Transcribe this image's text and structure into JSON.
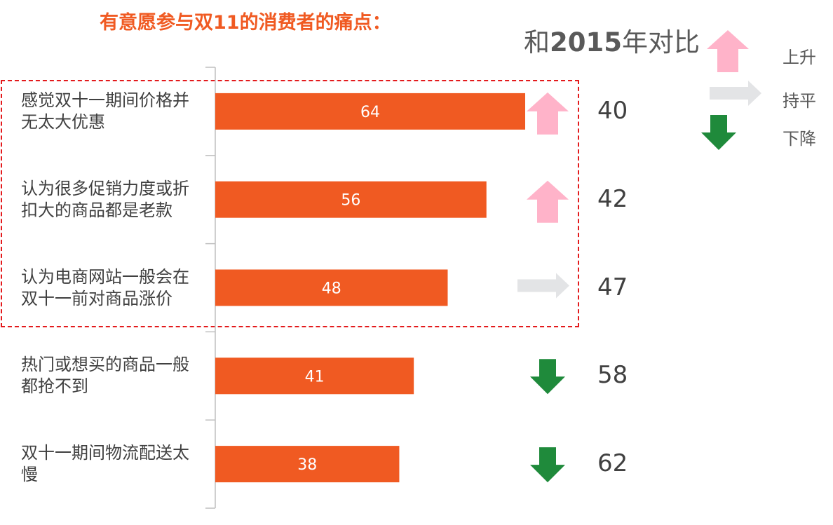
{
  "title": "有意愿参与双11的消费者的痛点：",
  "comparison_title": {
    "prefix": "和",
    "year": "2015",
    "suffix": "年对比"
  },
  "legend": [
    {
      "label": "上升",
      "icon": "arrow-up-icon",
      "color": "#ffb3c9"
    },
    {
      "label": "持平",
      "icon": "arrow-right-icon",
      "color": "#e3e4e6"
    },
    {
      "label": "下降",
      "icon": "arrow-down-icon",
      "color": "#1f8a3b"
    }
  ],
  "colors": {
    "bar": "#f05a22",
    "accent": "#f05a22",
    "highlight_border": "#e31a1c"
  },
  "chart_data": {
    "type": "bar",
    "orientation": "horizontal",
    "categories": [
      "感觉双十一期间价格并无太大优惠",
      "认为很多促销力度或折扣大的商品都是老款",
      "认为电商网站一般会在双十一前对商品涨价",
      "热门或想买的商品一般都抢不到",
      "双十一期间物流配送太慢"
    ],
    "values": [
      64,
      56,
      48,
      41,
      38
    ],
    "xlim": [
      0,
      100
    ],
    "comparison_2015": [
      40,
      42,
      47,
      58,
      62
    ],
    "trend": [
      "up",
      "up",
      "flat",
      "down",
      "down"
    ],
    "grid": false
  }
}
